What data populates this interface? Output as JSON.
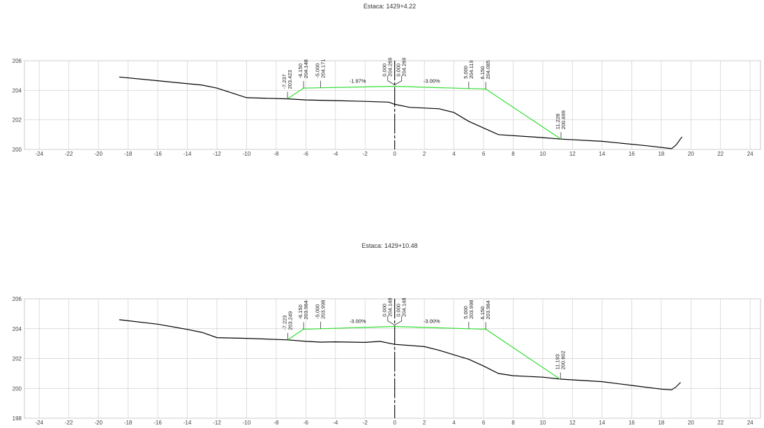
{
  "chart_data": [
    {
      "type": "line",
      "title": "Estaca: 1429+4.22",
      "xlim": [
        -25,
        24.7
      ],
      "ylim": [
        200,
        206
      ],
      "x_ticks": [
        -24,
        -22,
        -20,
        -18,
        -16,
        -14,
        -12,
        -10,
        -8,
        -6,
        -4,
        -2,
        0,
        2,
        4,
        6,
        8,
        10,
        12,
        14,
        16,
        18,
        20,
        22,
        24
      ],
      "y_ticks": [
        200,
        202,
        204,
        206
      ],
      "grid": true,
      "series": [
        {
          "color": "#000000",
          "x": [
            -18.6,
            -16,
            -13,
            -12,
            -10,
            -7.2,
            -6,
            -4,
            -2,
            -0.4,
            0,
            1,
            3,
            4,
            5,
            7,
            10,
            11.2,
            14,
            17,
            18.7
          ],
          "y": [
            204.9,
            204.65,
            204.35,
            204.15,
            203.5,
            203.42,
            203.35,
            203.3,
            203.25,
            203.2,
            203.05,
            202.85,
            202.75,
            202.5,
            201.9,
            201.0,
            200.8,
            200.7,
            200.55,
            200.25,
            200.05
          ]
        },
        {
          "color": "#33dd33",
          "x": [
            -7.237,
            -6.15,
            -5.0,
            0.0,
            5.0,
            6.15,
            11.228
          ],
          "y": [
            203.423,
            204.148,
            204.171,
            204.269,
            204.119,
            204.085,
            200.699
          ]
        }
      ],
      "tail": {
        "x": [
          18.7,
          19.0,
          19.4
        ],
        "y": [
          200.05,
          200.3,
          200.85
        ]
      },
      "point_labels": [
        {
          "x": -7.237,
          "y": 203.423,
          "offset": "-7.237",
          "elev": "203.423"
        },
        {
          "x": -6.15,
          "y": 204.148,
          "offset": "-6.150",
          "elev": "204.148"
        },
        {
          "x": -5.0,
          "y": 204.171,
          "offset": "-5.000",
          "elev": "204.171"
        },
        {
          "x": 0.0,
          "y": 204.269,
          "offset": "0.000",
          "elev": "204.269"
        },
        {
          "x": 0.0,
          "y": 204.269,
          "offset": "0.000",
          "elev": "204.269"
        },
        {
          "x": 5.0,
          "y": 204.119,
          "offset": "5.000",
          "elev": "204.119"
        },
        {
          "x": 6.15,
          "y": 204.085,
          "offset": "6.150",
          "elev": "204.085"
        },
        {
          "x": 11.228,
          "y": 200.699,
          "offset": "11.228",
          "elev": "200.699"
        }
      ],
      "slope_labels": [
        {
          "x": -2.5,
          "y": 204.269,
          "text": "-1.97%"
        },
        {
          "x": 2.5,
          "y": 204.269,
          "text": "-3.00%"
        }
      ]
    },
    {
      "type": "line",
      "title": "Estaca: 1429+10.48",
      "xlim": [
        -25,
        24.7
      ],
      "ylim": [
        198,
        206
      ],
      "x_ticks": [
        -24,
        -22,
        -20,
        -18,
        -16,
        -14,
        -12,
        -10,
        -8,
        -6,
        -4,
        -2,
        0,
        2,
        4,
        6,
        8,
        10,
        12,
        14,
        16,
        18,
        20,
        22,
        24
      ],
      "y_ticks": [
        198,
        200,
        202,
        204,
        206
      ],
      "grid": true,
      "series": [
        {
          "color": "#000000",
          "x": [
            -18.6,
            -16,
            -14,
            -13,
            -12,
            -10,
            -7.2,
            -6,
            -5,
            -4,
            -2,
            -1,
            0,
            2,
            3,
            4,
            5,
            6,
            7,
            8,
            10,
            11.2,
            14,
            16,
            18,
            18.7
          ],
          "y": [
            204.6,
            204.3,
            203.95,
            203.75,
            203.4,
            203.35,
            203.249,
            203.15,
            203.1,
            203.12,
            203.08,
            203.15,
            202.95,
            202.8,
            202.55,
            202.25,
            201.95,
            201.5,
            201.0,
            200.85,
            200.75,
            200.62,
            200.45,
            200.2,
            199.95,
            199.9
          ]
        },
        {
          "color": "#33dd33",
          "x": [
            -7.223,
            -6.15,
            -5.0,
            0.0,
            5.0,
            6.15,
            11.193
          ],
          "y": [
            203.249,
            203.964,
            203.998,
            204.148,
            203.998,
            203.964,
            200.602
          ]
        }
      ],
      "tail": {
        "x": [
          18.7,
          19.0,
          19.3
        ],
        "y": [
          199.9,
          200.1,
          200.4
        ]
      },
      "point_labels": [
        {
          "x": -7.223,
          "y": 203.249,
          "offset": "-7.223",
          "elev": "203.249"
        },
        {
          "x": -6.15,
          "y": 203.964,
          "offset": "-6.150",
          "elev": "203.964"
        },
        {
          "x": -5.0,
          "y": 203.998,
          "offset": "-5.000",
          "elev": "203.998"
        },
        {
          "x": 0.0,
          "y": 204.148,
          "offset": "0.000",
          "elev": "204.148"
        },
        {
          "x": 0.0,
          "y": 204.148,
          "offset": "0.000",
          "elev": "204.148"
        },
        {
          "x": 5.0,
          "y": 203.998,
          "offset": "5.000",
          "elev": "203.998"
        },
        {
          "x": 6.15,
          "y": 203.964,
          "offset": "6.150",
          "elev": "203.964"
        },
        {
          "x": 11.193,
          "y": 200.602,
          "offset": "11.193",
          "elev": "200.602"
        }
      ],
      "slope_labels": [
        {
          "x": -2.5,
          "y": 204.148,
          "text": "-3.00%"
        },
        {
          "x": 2.5,
          "y": 204.148,
          "text": "-3.00%"
        }
      ]
    }
  ]
}
